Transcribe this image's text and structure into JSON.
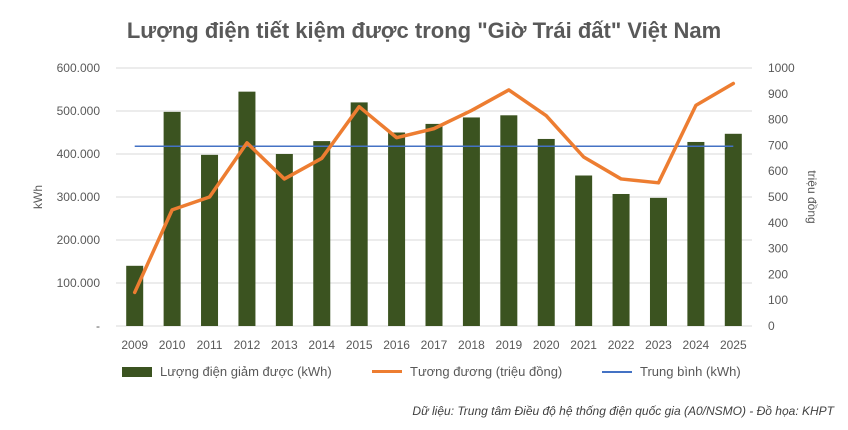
{
  "title": "Lượng điện tiết kiệm được trong \"Giờ Trái đất\" Việt Nam",
  "source": "Dữ liệu: Trung tâm Điều độ hệ thống điện quốc gia (A0/NSMO) - Đồ họa: KHPT",
  "colors": {
    "bar": "#3B5320",
    "line": "#ED7D31",
    "avg": "#4472C4",
    "grid": "#D9D9D9",
    "text": "#595959"
  },
  "legend": {
    "bar": "Lượng điện giảm được (kWh)",
    "line": "Tương đương (triệu đồng)",
    "avg": "Trung bình (kWh)"
  },
  "chart_data": {
    "type": "bar+line",
    "title": "Lượng điện tiết kiệm được trong \"Giờ Trái đất\" Việt Nam",
    "categories": [
      "2009",
      "2010",
      "2011",
      "2012",
      "2013",
      "2014",
      "2015",
      "2016",
      "2017",
      "2018",
      "2019",
      "2020",
      "2021",
      "2022",
      "2023",
      "2024",
      "2025"
    ],
    "ylabel": "kWh",
    "y2label": "triệu đồng",
    "ylim": [
      0,
      600000
    ],
    "y2lim": [
      0,
      1000
    ],
    "yticks": [
      "-",
      "100.000",
      "200.000",
      "300.000",
      "400.000",
      "500.000",
      "600.000"
    ],
    "y2ticks": [
      "0",
      "100",
      "200",
      "300",
      "400",
      "500",
      "600",
      "700",
      "800",
      "900",
      "1000"
    ],
    "grid": true,
    "series": [
      {
        "name": "Lượng điện giảm được (kWh)",
        "type": "bar",
        "axis": "left",
        "values": [
          140000,
          498000,
          398000,
          545000,
          400000,
          430000,
          520000,
          450000,
          470000,
          485000,
          490000,
          435000,
          350000,
          307000,
          298000,
          428000,
          447000
        ]
      },
      {
        "name": "Tương đương (triệu đồng)",
        "type": "line",
        "axis": "right",
        "values": [
          130,
          450,
          500,
          710,
          570,
          650,
          850,
          730,
          765,
          835,
          915,
          815,
          655,
          570,
          555,
          855,
          940
        ]
      },
      {
        "name": "Trung bình (kWh)",
        "type": "line",
        "axis": "left",
        "values": [
          418000,
          418000,
          418000,
          418000,
          418000,
          418000,
          418000,
          418000,
          418000,
          418000,
          418000,
          418000,
          418000,
          418000,
          418000,
          418000,
          418000
        ]
      }
    ]
  }
}
